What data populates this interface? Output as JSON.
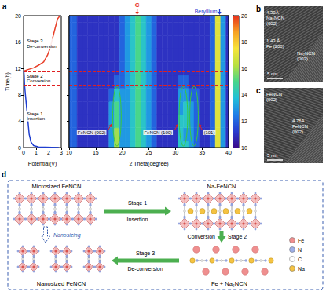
{
  "chart_data": [
    {
      "type": "line",
      "panel": "a",
      "x_label": "Potential(V)",
      "y_label": "Time(h)",
      "xlim": [
        0,
        3
      ],
      "xticks": [
        0,
        1,
        2,
        3
      ],
      "ylim": [
        0,
        20
      ],
      "yticks": [
        0,
        4,
        8,
        12,
        16,
        20
      ],
      "series": [
        {
          "color": "#1f3fd0",
          "x": [
            2.8,
            1.2,
            0.8,
            0.6,
            0.45,
            0.35,
            0.25,
            0.15,
            0.08,
            0.05,
            0.02
          ],
          "values": [
            0,
            0.1,
            0.3,
            0.8,
            2,
            4,
            6,
            8,
            9.5,
            11,
            11.6
          ]
        },
        {
          "color": "#e8402a",
          "x": [
            0.02,
            0.3,
            0.8,
            1.2,
            1.6,
            1.9,
            2.1,
            2.3,
            2.5,
            2.7,
            2.9
          ],
          "values": [
            11.6,
            11.8,
            12.1,
            12.5,
            13,
            14,
            15,
            16.5,
            18,
            19.5,
            20
          ]
        }
      ],
      "stages": [
        "Stage 1 Insertion",
        "Stage 2 Conversion",
        "Stage 3 De-conversion"
      ],
      "stage_boundaries": [
        9.5,
        11.5
      ]
    },
    {
      "type": "heatmap",
      "x_label": "2 Theta(degree)",
      "tick_labels": "x",
      "xlim": [
        10,
        40
      ],
      "xticks": [
        10,
        15,
        20,
        25,
        30,
        35,
        40
      ],
      "ylim": [
        0,
        20
      ],
      "yticks": [
        0,
        4,
        8,
        12,
        16,
        20
      ],
      "x": [
        10,
        11,
        12,
        13,
        14,
        15,
        16,
        17,
        18,
        19,
        20,
        21,
        22,
        23,
        24,
        25,
        26,
        27,
        28,
        29,
        30,
        31,
        32,
        33,
        34,
        35,
        36,
        37,
        38,
        39,
        40
      ],
      "y": [
        0,
        2,
        4,
        6,
        8,
        10,
        12,
        14,
        16,
        18,
        20
      ],
      "cells": [
        [
          12,
          12,
          11,
          11,
          11,
          11,
          11,
          11,
          13,
          16,
          13,
          13,
          14,
          15,
          14,
          13,
          12,
          11,
          11,
          11,
          11,
          14,
          14,
          13,
          12,
          11,
          11,
          12,
          17,
          13,
          11
        ],
        [
          12,
          12,
          11,
          11,
          11,
          11,
          11,
          11,
          13,
          16,
          13,
          13,
          14,
          15,
          14,
          13,
          12,
          11,
          11,
          11,
          11,
          14,
          13,
          13,
          12,
          11,
          11,
          12,
          17,
          13,
          11
        ],
        [
          12,
          12,
          11,
          11,
          11,
          11,
          11,
          11,
          13,
          15,
          13,
          13,
          14,
          15,
          14,
          13,
          12,
          11,
          11,
          11,
          11,
          14,
          14,
          13,
          12,
          11,
          11,
          12,
          17,
          13,
          11
        ],
        [
          12,
          12,
          11,
          11,
          11,
          11,
          11,
          11,
          13,
          15,
          13,
          13,
          14,
          15,
          14,
          13,
          12,
          11,
          11,
          11,
          11,
          13,
          14,
          13,
          12,
          11,
          11,
          12,
          17,
          13,
          11
        ],
        [
          12,
          12,
          11,
          11,
          11,
          11,
          11,
          11,
          12,
          14,
          13,
          13,
          14,
          15,
          14,
          13,
          12,
          11,
          11,
          11,
          11,
          13,
          13,
          12,
          12,
          11,
          11,
          12,
          17,
          13,
          11
        ],
        [
          12,
          12,
          11,
          11,
          11,
          11,
          11,
          11,
          11,
          12,
          12,
          13,
          14,
          15,
          14,
          13,
          12,
          11,
          11,
          11,
          11,
          12,
          12,
          11,
          11,
          11,
          11,
          12,
          17,
          13,
          11
        ],
        [
          12,
          12,
          11,
          11,
          11,
          11,
          11,
          11,
          11,
          11,
          12,
          13,
          14,
          15,
          14,
          13,
          12,
          11,
          11,
          11,
          11,
          11,
          11,
          11,
          11,
          11,
          11,
          12,
          17,
          13,
          11
        ],
        [
          12,
          12,
          11,
          11,
          11,
          11,
          11,
          11,
          11,
          11,
          12,
          13,
          14,
          15,
          14,
          13,
          12,
          11,
          11,
          11,
          11,
          11,
          11,
          11,
          11,
          11,
          11,
          12,
          17,
          13,
          11
        ],
        [
          12,
          12,
          11,
          11,
          11,
          11,
          11,
          11,
          11,
          11,
          12,
          13,
          14,
          15,
          14,
          13,
          12,
          11,
          11,
          11,
          11,
          11,
          11,
          11,
          11,
          11,
          11,
          12,
          17,
          13,
          11
        ],
        [
          12,
          12,
          11,
          11,
          11,
          11,
          11,
          11,
          11,
          11,
          12,
          13,
          14,
          15,
          14,
          13,
          12,
          11,
          11,
          11,
          11,
          11,
          11,
          11,
          11,
          11,
          11,
          12,
          17,
          13,
          11
        ],
        [
          12,
          12,
          11,
          11,
          11,
          11,
          11,
          11,
          11,
          11,
          12,
          13,
          14,
          15,
          14,
          13,
          12,
          11,
          11,
          11,
          11,
          11,
          11,
          11,
          11,
          11,
          11,
          12,
          17,
          13,
          11
        ]
      ],
      "colorbar": {
        "range": [
          10,
          20
        ],
        "ticks": [
          10,
          12,
          14,
          16,
          18,
          20
        ]
      },
      "annotations": [
        {
          "text": "C",
          "x": 22.8,
          "color": "#e8301c"
        },
        {
          "text": "Beryllium",
          "x": 38.3,
          "color": "#1f3fd0"
        }
      ],
      "peaks": [
        {
          "text": "FeNCN (002)",
          "x": 19
        },
        {
          "text": "FeNCN (100)",
          "x": 31.5
        },
        {
          "text": "(101)",
          "x": 33.5
        }
      ],
      "stage_boundaries": [
        9.5,
        11.5
      ]
    }
  ],
  "tem": [
    {
      "panel": "b",
      "labels": [
        "4.30Å Na₂NCN (002)",
        "1.43 Å Fe (200)",
        "Na₂NCN (002)"
      ],
      "scale_bar": "5 nm"
    },
    {
      "panel": "c",
      "labels": [
        "FeNCN (002)",
        "4.76Å FeNCN (002)"
      ],
      "scale_bar": "5 nm"
    }
  ],
  "schematic": {
    "panel": "d",
    "states": [
      "Microsized FeNCN",
      "NaₓFeNCN",
      "Fe + Na₂NCN",
      "Nanosized FeNCN"
    ],
    "steps": [
      {
        "stage": "Stage 1",
        "process": "Insertion"
      },
      {
        "stage": "Stage 2",
        "process": "Conversion"
      },
      {
        "stage": "Stage 3",
        "process": "De-conversion"
      }
    ],
    "nanosizing": "Nanosizing",
    "elements": [
      {
        "name": "Fe",
        "color": "#ef8f8f"
      },
      {
        "name": "N",
        "color": "#9fb0e8"
      },
      {
        "name": "C",
        "color": "#ffffff"
      },
      {
        "name": "Na",
        "color": "#f5c342"
      }
    ]
  }
}
